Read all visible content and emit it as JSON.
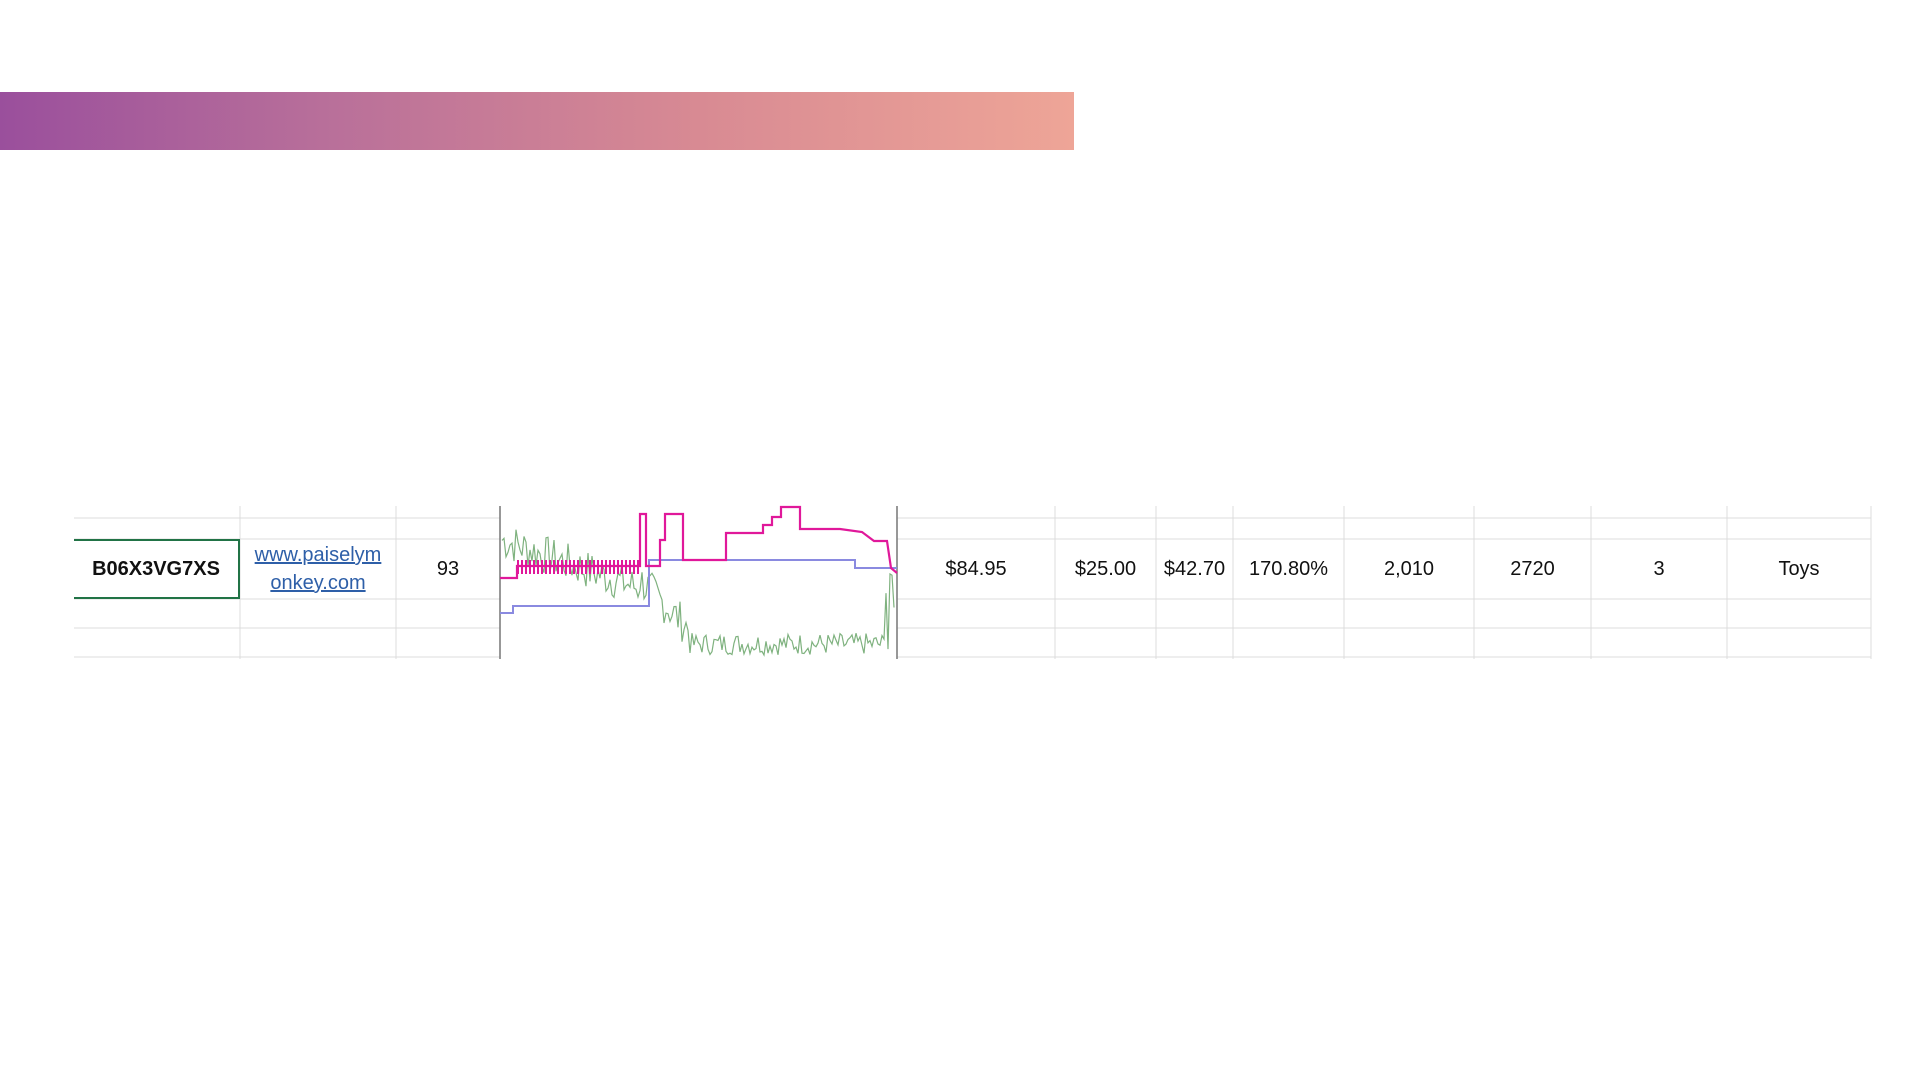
{
  "row": {
    "cells": [
      "B06X3VG7XS",
      "www.paiselymonkey.com",
      "93",
      "$84.95",
      "$25.00",
      "$42.70",
      "170.80%",
      "2,010",
      "2720",
      "3",
      "Toys"
    ]
  }
}
